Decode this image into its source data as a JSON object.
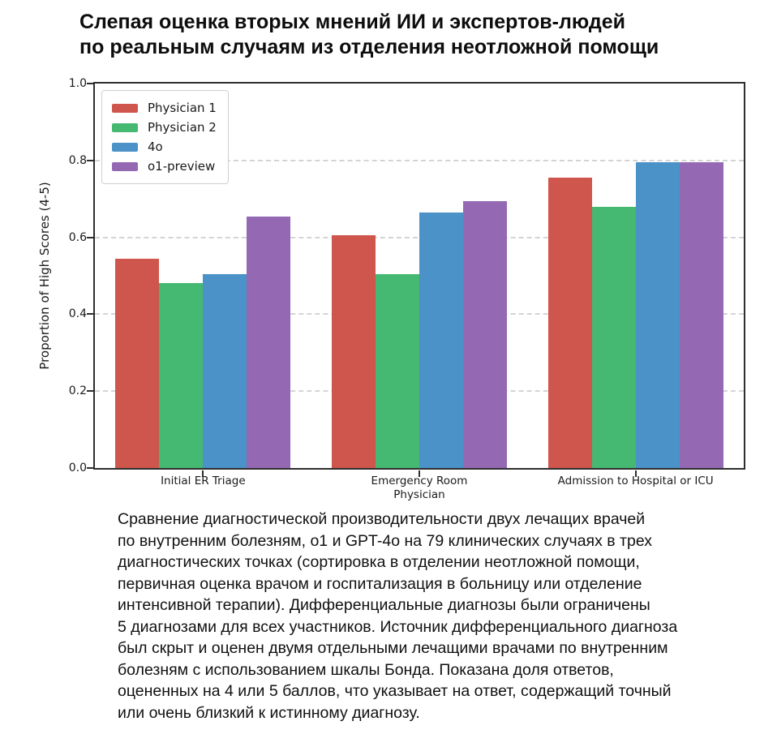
{
  "title": "Слепая оценка вторых мнений ИИ и экспертов-людей\nпо реальным случаям из отделения неотложной помощи",
  "chart_data": {
    "type": "bar",
    "title": "Слепая оценка вторых мнений ИИ и экспертов-людей по реальным случаям из отделения неотложной помощи",
    "xlabel": "",
    "ylabel": "Proportion of High Scores (4-5)",
    "ylim": [
      0.0,
      1.0
    ],
    "yticks": [
      0.0,
      0.2,
      0.4,
      0.6,
      0.8,
      1.0
    ],
    "grid": "horizontal-dashed",
    "legend_position": "upper-left",
    "categories": [
      "Initial ER Triage",
      "Emergency Room\nPhysician",
      "Admission to Hospital or ICU"
    ],
    "series": [
      {
        "name": "Physician 1",
        "color": "#cf564c",
        "values": [
          0.545,
          0.605,
          0.755
        ]
      },
      {
        "name": "Physician 2",
        "color": "#45b871",
        "values": [
          0.48,
          0.505,
          0.68
        ]
      },
      {
        "name": "4o",
        "color": "#4a92c8",
        "values": [
          0.505,
          0.665,
          0.795
        ]
      },
      {
        "name": "o1-preview",
        "color": "#9568b4",
        "values": [
          0.655,
          0.695,
          0.795
        ]
      }
    ],
    "colors": {
      "spine": "#2e2e2e",
      "grid": "#d4d4d4",
      "text": "#1a1a1a"
    }
  },
  "caption_lines": [
    "Сравнение диагностической производительности двух лечащих врачей",
    "по внутренним болезням, o1 и GPT-4o на 79 клинических случаях в трех",
    "диагностических точках (сортировка в отделении неотложной помощи,",
    "первичная оценка врачом и госпитализация в больницу или отделение",
    "интенсивной терапии). Дифференциальные диагнозы были ограничены",
    "5 диагнозами для всех участников. Источник дифференциального диагноза",
    "был скрыт и оценен двумя отдельными лечащими врачами по внутренним",
    "болезням с использованием шкалы Бонда. Показана доля ответов,",
    "оцененных на 4 или 5 баллов, что указывает на ответ, содержащий точный",
    "или очень близкий к истинному диагнозу."
  ]
}
